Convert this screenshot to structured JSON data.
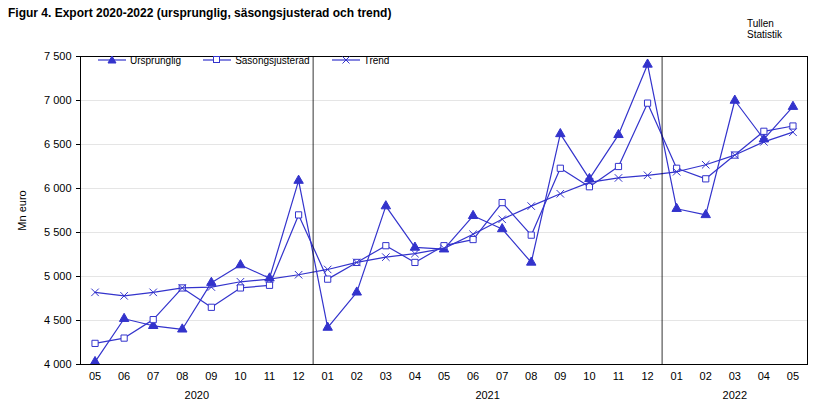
{
  "chart_data": {
    "type": "line",
    "title": "Figur 4. Export 2020-2022 (ursprunglig, säsongsjusterad och trend)",
    "annotation": "Tullen\nStatistik",
    "y_label": "Mn euro",
    "x": [
      "05",
      "06",
      "07",
      "08",
      "09",
      "10",
      "11",
      "12",
      "01",
      "02",
      "03",
      "04",
      "05",
      "06",
      "07",
      "08",
      "09",
      "10",
      "11",
      "12",
      "01",
      "02",
      "03",
      "04",
      "05"
    ],
    "years": [
      "2020",
      "2020",
      "2020",
      "2020",
      "2020",
      "2020",
      "2020",
      "2020",
      "2021",
      "2021",
      "2021",
      "2021",
      "2021",
      "2021",
      "2021",
      "2021",
      "2021",
      "2021",
      "2021",
      "2021",
      "2022",
      "2022",
      "2022",
      "2022",
      "2022"
    ],
    "series": [
      {
        "name": "Ursprunglig",
        "color": "#3333cc",
        "marker": "triangle",
        "values": [
          4030,
          4520,
          4440,
          4400,
          4930,
          5130,
          4980,
          6090,
          4420,
          4820,
          5800,
          5330,
          5310,
          5690,
          5540,
          5160,
          6620,
          6110,
          6610,
          7410,
          5770,
          5700,
          7000,
          6560,
          6930
        ]
      },
      {
        "name": "Säsongsjusterad",
        "color": "#3333cc",
        "marker": "square",
        "values": [
          4240,
          4300,
          4510,
          4870,
          4650,
          4870,
          4900,
          5700,
          4970,
          5160,
          5350,
          5160,
          5350,
          5420,
          5840,
          5470,
          6230,
          6020,
          6250,
          6970,
          6230,
          6110,
          6380,
          6650,
          6710
        ]
      },
      {
        "name": "Trend",
        "color": "#3333cc",
        "marker": "x",
        "values": [
          4820,
          4780,
          4820,
          4870,
          4880,
          4940,
          4970,
          5020,
          5080,
          5160,
          5220,
          5260,
          5320,
          5480,
          5650,
          5800,
          5940,
          6070,
          6120,
          6150,
          6190,
          6270,
          6380,
          6530,
          6640
        ]
      }
    ],
    "ylim": [
      4000,
      7500
    ],
    "yticks": [
      {
        "value": 4000,
        "label": "4 000"
      },
      {
        "value": 4500,
        "label": "4 500"
      },
      {
        "value": 5000,
        "label": "5 000"
      },
      {
        "value": 5500,
        "label": "5 500"
      },
      {
        "value": 6000,
        "label": "6 000"
      },
      {
        "value": 6500,
        "label": "6 500"
      },
      {
        "value": 7000,
        "label": "7 000"
      },
      {
        "value": 7500,
        "label": "7 500"
      }
    ],
    "grid": true,
    "legend": "top-left"
  }
}
